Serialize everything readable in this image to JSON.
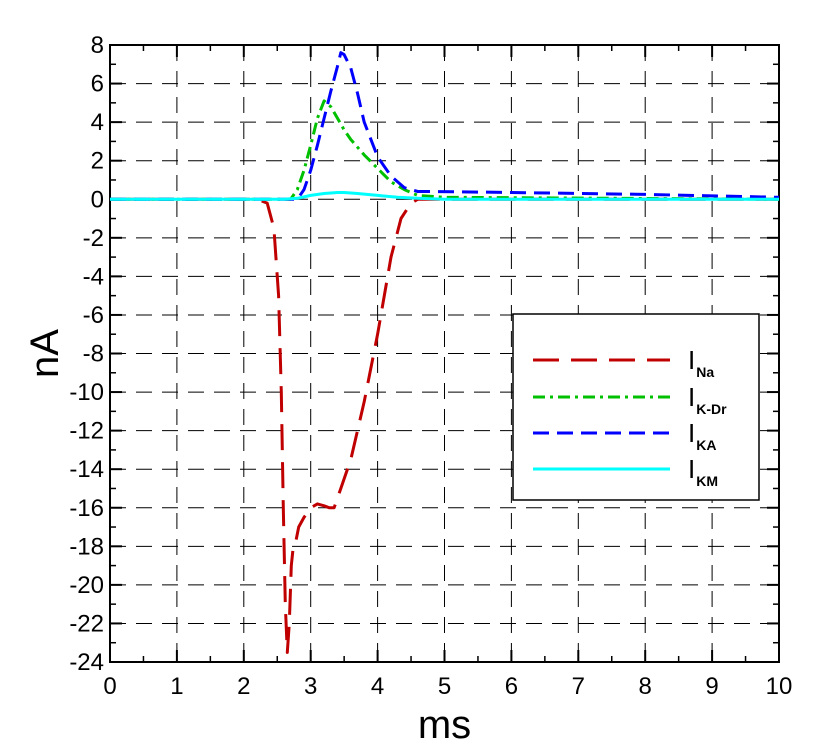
{
  "chart_data": {
    "type": "line",
    "xlabel": "ms",
    "ylabel": "nA",
    "xlim": [
      0,
      10
    ],
    "ylim": [
      -24,
      8
    ],
    "xticks": [
      0,
      1,
      2,
      3,
      4,
      5,
      6,
      7,
      8,
      9,
      10
    ],
    "yticks": [
      8,
      6,
      4,
      2,
      0,
      -2,
      -4,
      -6,
      -8,
      -10,
      -12,
      -14,
      -16,
      -18,
      -20,
      -22,
      -24
    ],
    "grid": true,
    "legend_position": "center-right",
    "series": [
      {
        "name": "I",
        "subscript": "Na",
        "color": "#c00000",
        "dash": "long-dash",
        "x": [
          0,
          2.2,
          2.35,
          2.45,
          2.52,
          2.56,
          2.59,
          2.62,
          2.65,
          2.68,
          2.71,
          2.74,
          2.78,
          2.82,
          2.9,
          3.0,
          3.1,
          3.2,
          3.28,
          3.35,
          3.45,
          3.6,
          3.8,
          4.0,
          4.2,
          4.35,
          4.5,
          4.6,
          5.0,
          10
        ],
        "y": [
          0,
          0,
          -0.2,
          -1.5,
          -5,
          -10,
          -16,
          -21,
          -23.5,
          -22,
          -19,
          -18,
          -17.7,
          -17,
          -16.5,
          -16,
          -15.8,
          -15.9,
          -16,
          -16,
          -15,
          -13.5,
          -10.5,
          -7,
          -3,
          -1,
          -0.2,
          0,
          0,
          0
        ]
      },
      {
        "name": "I",
        "subscript": "K-Dr",
        "color": "#00c000",
        "dash": "dash-dot",
        "x": [
          0,
          2.7,
          2.8,
          2.9,
          3.0,
          3.1,
          3.2,
          3.3,
          3.4,
          3.5,
          3.6,
          3.8,
          4.0,
          4.2,
          4.4,
          4.6,
          5.0,
          10
        ],
        "y": [
          0,
          0,
          0.5,
          1.5,
          2.8,
          4.2,
          5.1,
          4.8,
          4.2,
          3.6,
          3.1,
          2.3,
          1.6,
          0.9,
          0.5,
          0.2,
          0.1,
          0
        ]
      },
      {
        "name": "I",
        "subscript": "KA",
        "color": "#0000ff",
        "dash": "dash",
        "x": [
          0,
          2.8,
          2.9,
          3.0,
          3.1,
          3.2,
          3.3,
          3.4,
          3.45,
          3.5,
          3.6,
          3.7,
          3.8,
          4.0,
          4.2,
          4.4,
          4.6,
          4.8,
          6.0,
          8.0,
          10
        ],
        "y": [
          0,
          0,
          0.5,
          1.5,
          2.8,
          4.2,
          5.6,
          6.9,
          7.6,
          7.5,
          6.8,
          5.5,
          4.0,
          2.2,
          1.2,
          0.6,
          0.4,
          0.4,
          0.35,
          0.25,
          0.1
        ]
      },
      {
        "name": "I",
        "subscript": "KM",
        "color": "#00ffff",
        "dash": "solid",
        "x": [
          0,
          2.6,
          2.8,
          3.0,
          3.2,
          3.4,
          3.5,
          3.7,
          4.0,
          4.3,
          4.6,
          5.0,
          10
        ],
        "y": [
          0,
          0,
          0.05,
          0.2,
          0.3,
          0.35,
          0.35,
          0.3,
          0.2,
          0.1,
          0.05,
          0,
          0
        ]
      }
    ]
  }
}
